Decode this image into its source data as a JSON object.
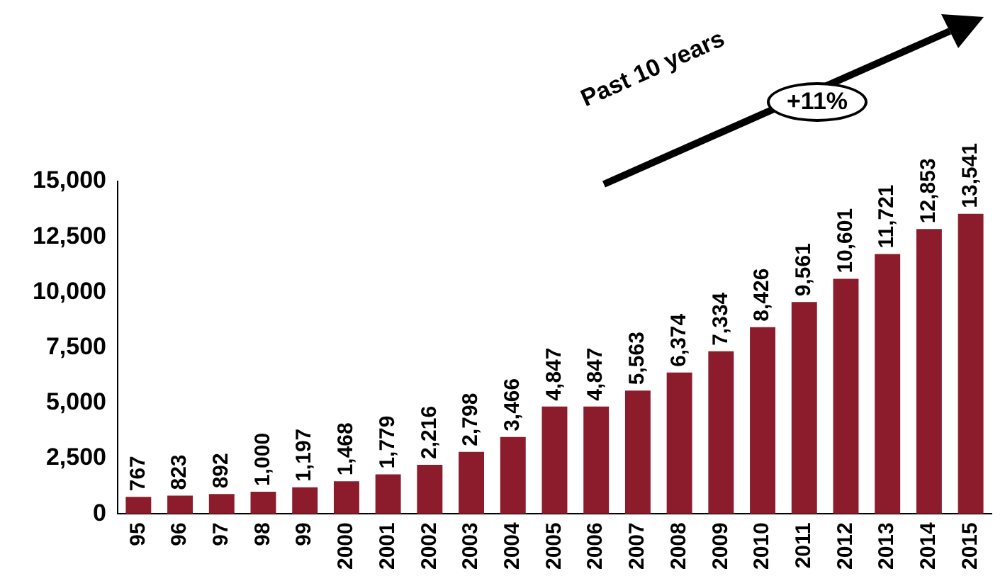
{
  "chart_data": {
    "type": "bar",
    "categories": [
      "95",
      "96",
      "97",
      "98",
      "99",
      "2000",
      "2001",
      "2002",
      "2003",
      "2004",
      "2005",
      "2006",
      "2007",
      "2008",
      "2009",
      "2010",
      "2011",
      "2012",
      "2013",
      "2014",
      "2015"
    ],
    "values": [
      767,
      823,
      892,
      1000,
      1197,
      1468,
      1779,
      2216,
      2798,
      3466,
      4847,
      4847,
      5563,
      6374,
      7334,
      8426,
      9561,
      10601,
      11721,
      12853,
      13541
    ],
    "value_labels": [
      "767",
      "823",
      "892",
      "1,000",
      "1,197",
      "1,468",
      "1,779",
      "2,216",
      "2,798",
      "3,466",
      "4,847",
      "4,847",
      "5,563",
      "6,374",
      "7,334",
      "8,426",
      "9,561",
      "10,601",
      "11,721",
      "12,853",
      "13,541"
    ],
    "color": "#8c1c2c",
    "ylim": [
      0,
      15000
    ],
    "yticks": [
      {
        "value": 0,
        "label": "0"
      },
      {
        "value": 2500,
        "label": "2,500"
      },
      {
        "value": 5000,
        "label": "5,000"
      },
      {
        "value": 7500,
        "label": "7,500"
      },
      {
        "value": 10000,
        "label": "10,000"
      },
      {
        "value": 12500,
        "label": "12,500"
      },
      {
        "value": 15000,
        "label": "15,000"
      }
    ],
    "grid": false,
    "legend": false,
    "annotations": [
      "Past 10 years",
      "+11%"
    ]
  }
}
